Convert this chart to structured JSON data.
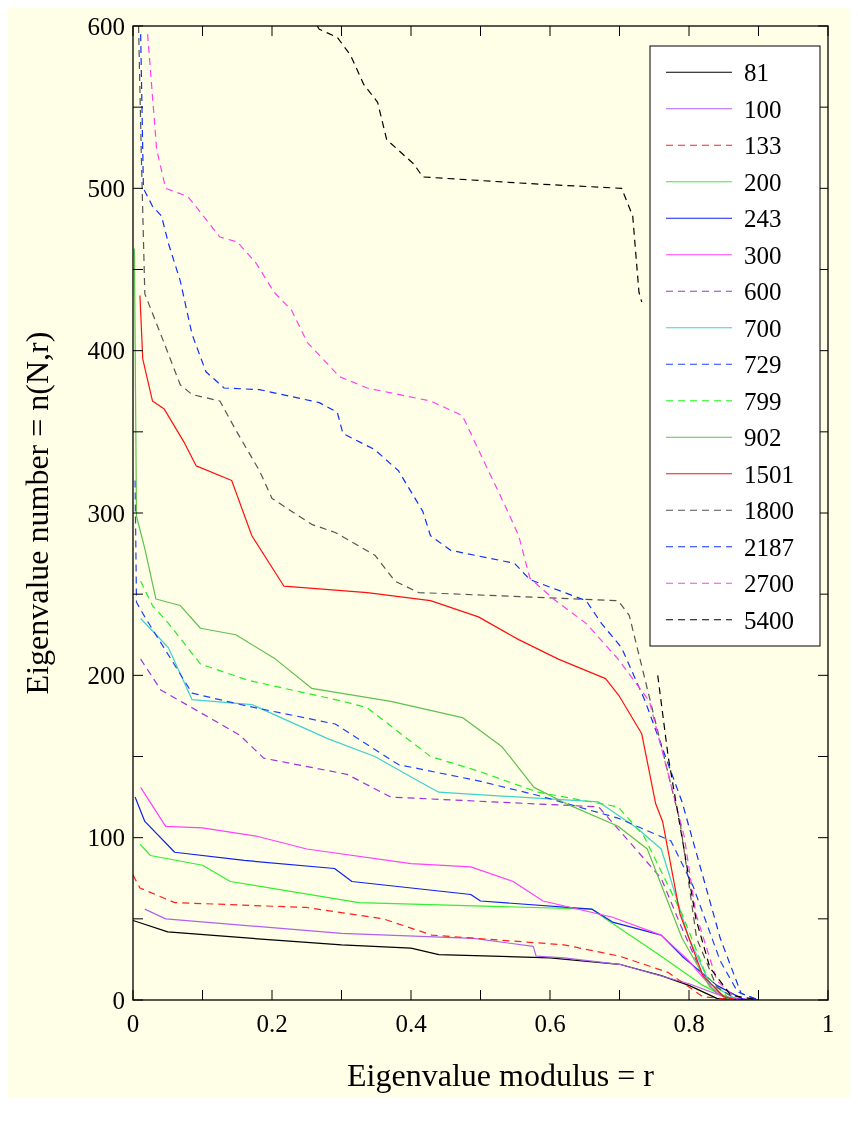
{
  "chart_data": {
    "type": "line",
    "xlabel": "Eigenvalue modulus = r",
    "ylabel": "Eigenvalue number = n(N,r)",
    "xlim": [
      0,
      1
    ],
    "ylim": [
      0,
      600
    ],
    "xticks": [
      0,
      {
        "value": 0.1,
        "label": null
      },
      0.2,
      {
        "value": 0.3,
        "label": null
      },
      0.4,
      {
        "value": 0.5,
        "label": null
      },
      0.6,
      {
        "value": 0.7,
        "label": null
      },
      0.8,
      {
        "value": 0.9,
        "label": null
      },
      1
    ],
    "yticks": [
      0,
      {
        "value": 50,
        "label": null
      },
      100,
      {
        "value": 150,
        "label": null
      },
      200,
      {
        "value": 250,
        "label": null
      },
      300,
      {
        "value": 350,
        "label": null
      },
      400,
      {
        "value": 450,
        "label": null
      },
      500,
      {
        "value": 550,
        "label": null
      },
      600
    ],
    "grid": false,
    "legend": "top right",
    "series": [
      {
        "name": "81",
        "color": "#000000",
        "line_style": "solid",
        "x": [
          0,
          0.05,
          0.2,
          0.3,
          0.4,
          0.44,
          0.6,
          0.7,
          0.76,
          0.8,
          0.84,
          0.9
        ],
        "values": [
          49,
          42,
          37,
          34,
          32,
          28,
          26,
          22,
          15,
          9,
          1,
          0
        ]
      },
      {
        "name": "100",
        "color": "#b060f0",
        "line_style": "solid",
        "x": [
          0.017,
          0.047,
          0.3,
          0.49,
          0.576,
          0.58,
          0.62,
          0.7,
          0.8,
          0.85,
          0.9
        ],
        "values": [
          56,
          50,
          41,
          38,
          33,
          27,
          26,
          22,
          10,
          2,
          0
        ]
      },
      {
        "name": "133",
        "color": "#ff2020",
        "line_style": "dashed",
        "x": [
          0,
          0.01,
          0.06,
          0.25,
          0.36,
          0.43,
          0.62,
          0.7,
          0.77,
          0.82,
          0.87
        ],
        "values": [
          77,
          69,
          60,
          57,
          50,
          40,
          34,
          27,
          17,
          2,
          0
        ]
      },
      {
        "name": "200",
        "color": "#30f030",
        "line_style": "solid",
        "x": [
          0.01,
          0.025,
          0.1,
          0.14,
          0.325,
          0.66,
          0.68,
          0.76,
          0.82,
          0.86
        ],
        "values": [
          96,
          89,
          83,
          73,
          60,
          56,
          50,
          27,
          9,
          0
        ]
      },
      {
        "name": "243",
        "color": "#1020f0",
        "line_style": "solid",
        "x": [
          0.003,
          0.017,
          0.06,
          0.16,
          0.29,
          0.315,
          0.486,
          0.5,
          0.66,
          0.69,
          0.76,
          0.79,
          0.84,
          0.88
        ],
        "values": [
          125,
          110,
          91,
          86,
          81,
          73,
          65,
          61,
          56,
          48,
          40,
          27,
          9,
          0
        ]
      },
      {
        "name": "300",
        "color": "#ff40ff",
        "line_style": "solid",
        "x": [
          0.011,
          0.047,
          0.1,
          0.177,
          0.25,
          0.4,
          0.486,
          0.547,
          0.59,
          0.69,
          0.76,
          0.8,
          0.84,
          0.87
        ],
        "values": [
          131,
          107,
          106,
          101,
          93,
          84,
          82,
          73,
          61,
          51,
          40,
          24,
          4,
          0
        ]
      },
      {
        "name": "600",
        "color": "#a030e0",
        "line_style": "dashed",
        "x": [
          0.011,
          0.04,
          0.085,
          0.154,
          0.188,
          0.308,
          0.371,
          0.67,
          0.76,
          0.787,
          0.82,
          0.85,
          0.88
        ],
        "values": [
          210,
          191,
          180,
          163,
          149,
          139,
          125,
          119,
          75,
          47,
          15,
          2,
          0
        ]
      },
      {
        "name": "700",
        "color": "#40d0d0",
        "line_style": "solid",
        "x": [
          0.011,
          0.051,
          0.085,
          0.171,
          0.28,
          0.348,
          0.406,
          0.44,
          0.67,
          0.725,
          0.76,
          0.8,
          0.83,
          0.87
        ],
        "values": [
          235,
          217,
          185,
          182,
          161,
          150,
          136,
          128,
          122,
          106,
          93,
          38,
          10,
          0
        ]
      },
      {
        "name": "729",
        "color": "#2040ff",
        "line_style": "dashed",
        "x": [
          0.003,
          0.005,
          0.017,
          0.085,
          0.165,
          0.291,
          0.382,
          0.497,
          0.583,
          0.698,
          0.774,
          0.806,
          0.845,
          0.87,
          0.9
        ],
        "values": [
          320,
          245,
          236,
          189,
          181,
          170,
          145,
          135,
          126,
          112,
          98,
          70,
          24,
          5,
          0
        ]
      },
      {
        "name": "799",
        "color": "#20f020",
        "line_style": "dashed",
        "x": [
          0.011,
          0.028,
          0.051,
          0.097,
          0.165,
          0.302,
          0.337,
          0.428,
          0.497,
          0.583,
          0.698,
          0.735,
          0.79,
          0.825,
          0.86
        ],
        "values": [
          258,
          243,
          232,
          207,
          197,
          184,
          180,
          150,
          141,
          128,
          119,
          101,
          53,
          15,
          0
        ]
      },
      {
        "name": "902",
        "color": "#60c050",
        "line_style": "solid",
        "x": [
          0.002,
          0.005,
          0.017,
          0.033,
          0.068,
          0.097,
          0.148,
          0.205,
          0.257,
          0.371,
          0.474,
          0.531,
          0.577,
          0.623,
          0.698,
          0.74,
          0.79,
          0.83,
          0.86
        ],
        "values": [
          463,
          298,
          278,
          247,
          243,
          229,
          225,
          210,
          192,
          184,
          174,
          156,
          131,
          121,
          107,
          93,
          38,
          8,
          0
        ]
      },
      {
        "name": "1501",
        "color": "#ff1010",
        "line_style": "solid",
        "x": [
          0.01,
          0.014,
          0.028,
          0.045,
          0.073,
          0.091,
          0.142,
          0.171,
          0.217,
          0.337,
          0.428,
          0.497,
          0.555,
          0.612,
          0.68,
          0.7,
          0.732,
          0.752,
          0.762,
          0.787,
          0.82,
          0.85,
          0.87
        ],
        "values": [
          434,
          395,
          369,
          364,
          344,
          329,
          320,
          286,
          255,
          251,
          246,
          236,
          222,
          210,
          198,
          187,
          164,
          121,
          110,
          53,
          15,
          2,
          0
        ]
      },
      {
        "name": "1800",
        "color": "#555555",
        "line_style": "dashed",
        "x": [
          0.008,
          0.012,
          0.017,
          0.04,
          0.068,
          0.085,
          0.125,
          0.148,
          0.182,
          0.2,
          0.257,
          0.291,
          0.348,
          0.377,
          0.411,
          0.698,
          0.714,
          0.737,
          0.787,
          0.811,
          0.84,
          0.87
        ],
        "values": [
          600,
          520,
          435,
          410,
          379,
          373,
          369,
          351,
          326,
          309,
          293,
          288,
          274,
          258,
          251,
          246,
          237,
          197,
          110,
          38,
          8,
          0
        ]
      },
      {
        "name": "2187",
        "color": "#1030ff",
        "line_style": "dashed",
        "x": [
          0.011,
          0.015,
          0.028,
          0.041,
          0.051,
          0.068,
          0.085,
          0.105,
          0.131,
          0.182,
          0.268,
          0.294,
          0.302,
          0.348,
          0.382,
          0.417,
          0.428,
          0.457,
          0.549,
          0.571,
          0.652,
          0.674,
          0.703,
          0.737,
          0.79,
          0.845,
          0.875,
          0.9
        ],
        "values": [
          595,
          500,
          489,
          483,
          466,
          443,
          410,
          387,
          377,
          376,
          368,
          362,
          349,
          339,
          326,
          301,
          286,
          277,
          269,
          259,
          246,
          232,
          217,
          184,
          122,
          38,
          4,
          0
        ]
      },
      {
        "name": "2700",
        "color": "#ff40f0",
        "line_style": "dashed",
        "x": [
          0.021,
          0.034,
          0.047,
          0.079,
          0.125,
          0.15,
          0.177,
          0.203,
          0.228,
          0.251,
          0.297,
          0.337,
          0.428,
          0.474,
          0.497,
          0.537,
          0.555,
          0.571,
          0.605,
          0.652,
          0.698,
          0.743,
          0.793,
          0.81,
          0.84,
          0.87
        ],
        "values": [
          595,
          524,
          500,
          495,
          470,
          467,
          454,
          436,
          425,
          405,
          384,
          377,
          369,
          360,
          339,
          303,
          286,
          260,
          247,
          232,
          210,
          184,
          101,
          53,
          12,
          0
        ]
      },
      {
        "name": "5400",
        "color": "#000000",
        "line_style": "dashed",
        "x": [
          0.265,
          0.268,
          0.294,
          0.313,
          0.332,
          0.352,
          0.365,
          0.404,
          0.417,
          0.567,
          0.703,
          0.719,
          0.728,
          0.732,
          0.745,
          0.755,
          0.77,
          0.79,
          0.81,
          0.83,
          0.86,
          0.9
        ],
        "values": [
          600,
          598,
          593,
          582,
          564,
          553,
          530,
          515,
          507,
          503,
          500,
          483,
          436,
          430,
          null,
          200,
          150,
          100,
          50,
          20,
          3,
          0
        ]
      }
    ]
  }
}
